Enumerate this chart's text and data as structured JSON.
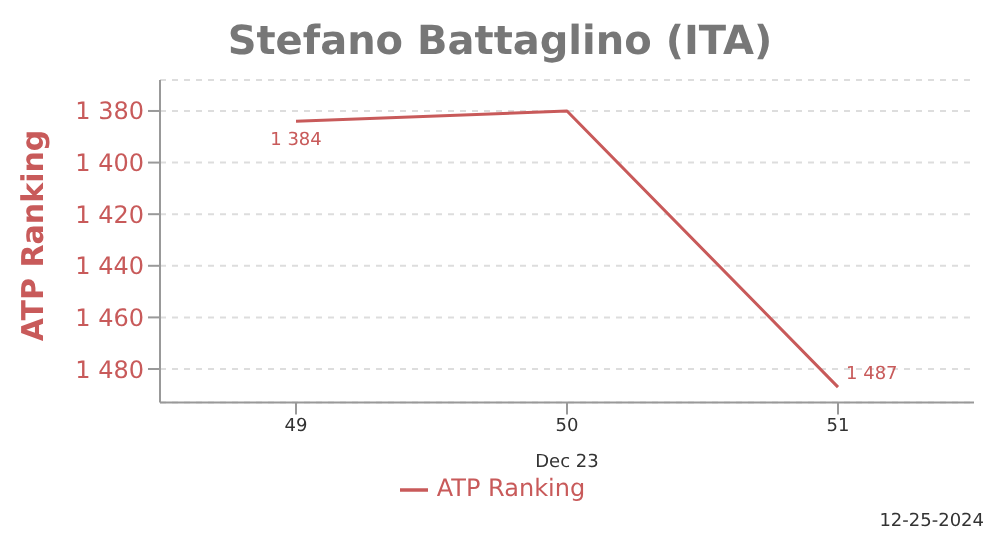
{
  "chart_data": {
    "type": "line",
    "title": "Stefano Battaglino (ITA)",
    "ylabel": "ATP Ranking",
    "xlabel": "Dec 23",
    "categories": [
      "49",
      "50",
      "51"
    ],
    "series": [
      {
        "name": "ATP Ranking",
        "color": "#c85a5a",
        "values": [
          1384,
          1380,
          1487
        ],
        "value_labels": [
          "1 384",
          null,
          "1 487"
        ]
      }
    ],
    "ylim": [
      1493,
      1368
    ],
    "yticks": [
      {
        "value": 1380,
        "label": "1 380"
      },
      {
        "value": 1400,
        "label": "1 400"
      },
      {
        "value": 1420,
        "label": "1 420"
      },
      {
        "value": 1440,
        "label": "1 440"
      },
      {
        "value": 1460,
        "label": "1 460"
      },
      {
        "value": 1480,
        "label": "1 480"
      }
    ],
    "grid": "y",
    "legend": "bottom",
    "marker": "none",
    "line_style": "solid",
    "annotations": [
      "12-25-2024"
    ]
  }
}
